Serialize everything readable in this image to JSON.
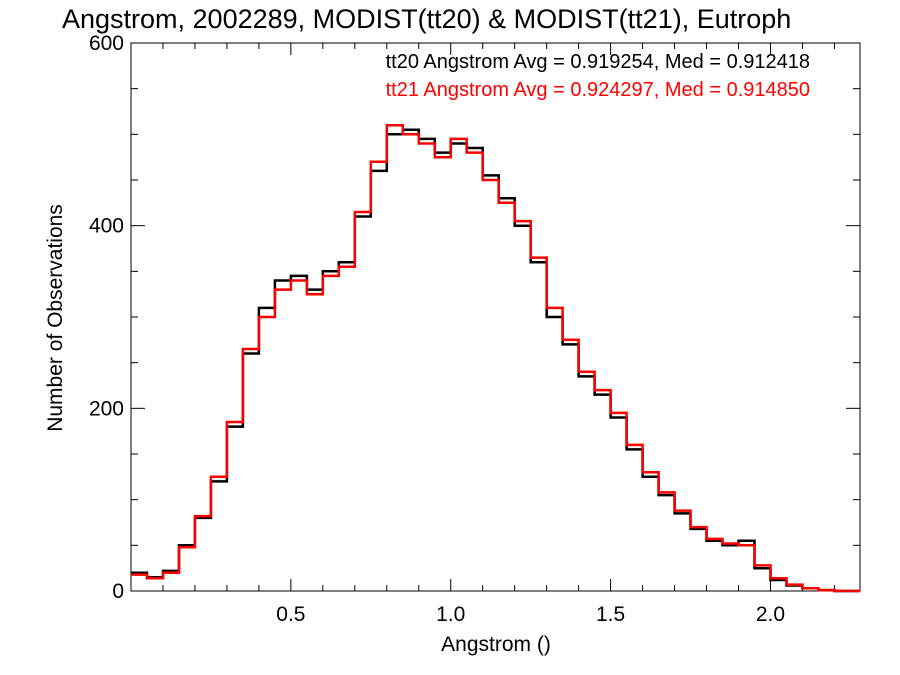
{
  "chart_data": {
    "type": "line",
    "step": true,
    "title": "Angstrom, 2002289, MODIST(tt20) & MODIST(tt21), Eutroph",
    "xlabel": "Angstrom ()",
    "ylabel": "Number of Observations",
    "xlim": [
      0.0,
      2.28
    ],
    "ylim": [
      0,
      600
    ],
    "xticks": [
      "0.5",
      "1.0",
      "1.5",
      "2.0"
    ],
    "yticks": [
      "0",
      "200",
      "400",
      "600"
    ],
    "grid": false,
    "annotations": [
      {
        "text": "tt20 Angstrom Avg = 0.919254, Med = 0.912418",
        "color": "#000000"
      },
      {
        "text": "tt21 Angstrom Avg = 0.924297, Med = 0.914850",
        "color": "#ff0000"
      }
    ],
    "series": [
      {
        "color": "#000000",
        "x": [
          0.0,
          0.05,
          0.1,
          0.15,
          0.2,
          0.25,
          0.3,
          0.35,
          0.4,
          0.45,
          0.5,
          0.55,
          0.6,
          0.65,
          0.7,
          0.75,
          0.8,
          0.85,
          0.9,
          0.95,
          1.0,
          1.05,
          1.1,
          1.15,
          1.2,
          1.25,
          1.3,
          1.35,
          1.4,
          1.45,
          1.5,
          1.55,
          1.6,
          1.65,
          1.7,
          1.75,
          1.8,
          1.85,
          1.9,
          1.95,
          2.0,
          2.05,
          2.1,
          2.15,
          2.2,
          2.25
        ],
        "values": [
          20,
          15,
          22,
          50,
          80,
          120,
          180,
          260,
          310,
          340,
          345,
          330,
          350,
          360,
          410,
          460,
          500,
          505,
          495,
          480,
          490,
          485,
          455,
          430,
          400,
          360,
          300,
          270,
          235,
          215,
          190,
          155,
          125,
          105,
          85,
          68,
          55,
          50,
          55,
          25,
          12,
          6,
          3,
          1,
          0,
          0
        ]
      },
      {
        "color": "#ff0000",
        "x": [
          0.0,
          0.05,
          0.1,
          0.15,
          0.2,
          0.25,
          0.3,
          0.35,
          0.4,
          0.45,
          0.5,
          0.55,
          0.6,
          0.65,
          0.7,
          0.75,
          0.8,
          0.85,
          0.9,
          0.95,
          1.0,
          1.05,
          1.1,
          1.15,
          1.2,
          1.25,
          1.3,
          1.35,
          1.4,
          1.45,
          1.5,
          1.55,
          1.6,
          1.65,
          1.7,
          1.75,
          1.8,
          1.85,
          1.9,
          1.95,
          2.0,
          2.05,
          2.1,
          2.15,
          2.2,
          2.25
        ],
        "values": [
          18,
          14,
          20,
          48,
          82,
          125,
          185,
          265,
          300,
          330,
          340,
          325,
          345,
          355,
          415,
          470,
          510,
          500,
          490,
          475,
          495,
          480,
          450,
          425,
          405,
          365,
          310,
          275,
          240,
          220,
          195,
          160,
          130,
          108,
          88,
          70,
          57,
          52,
          50,
          28,
          14,
          7,
          3,
          1,
          0,
          0
        ]
      }
    ]
  }
}
